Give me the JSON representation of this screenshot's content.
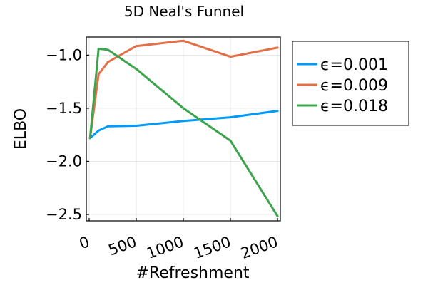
{
  "chart_data": {
    "type": "line",
    "title": "5D Neal's Funnel",
    "xlabel": "#Refreshment",
    "ylabel": "ELBO",
    "xlim": [
      -30,
      2030
    ],
    "ylim": [
      -2.56,
      -0.83
    ],
    "xticks": [
      0,
      500,
      1000,
      1500,
      2000
    ],
    "xtick_labels": [
      "0",
      "500",
      "1000",
      "1500",
      "2000"
    ],
    "yticks": [
      -2.5,
      -2.0,
      -1.5,
      -1.0
    ],
    "ytick_labels": [
      "−2.5",
      "−2.0",
      "−1.5",
      "−1.0"
    ],
    "grid": true,
    "legend_position": "outside-right-top",
    "x": [
      10,
      100,
      200,
      500,
      1000,
      1500,
      2000
    ],
    "series": [
      {
        "name": "ϵ=0.001",
        "color": "#009af9",
        "values": [
          -1.78,
          -1.71,
          -1.67,
          -1.665,
          -1.62,
          -1.585,
          -1.525
        ]
      },
      {
        "name": "ϵ=0.009",
        "color": "#e26f46",
        "values": [
          -1.78,
          -1.18,
          -1.065,
          -0.915,
          -0.865,
          -1.015,
          -0.93
        ]
      },
      {
        "name": "ϵ=0.018",
        "color": "#3da44d",
        "values": [
          -1.78,
          -0.94,
          -0.95,
          -1.13,
          -1.5,
          -1.805,
          -2.515
        ]
      }
    ]
  }
}
